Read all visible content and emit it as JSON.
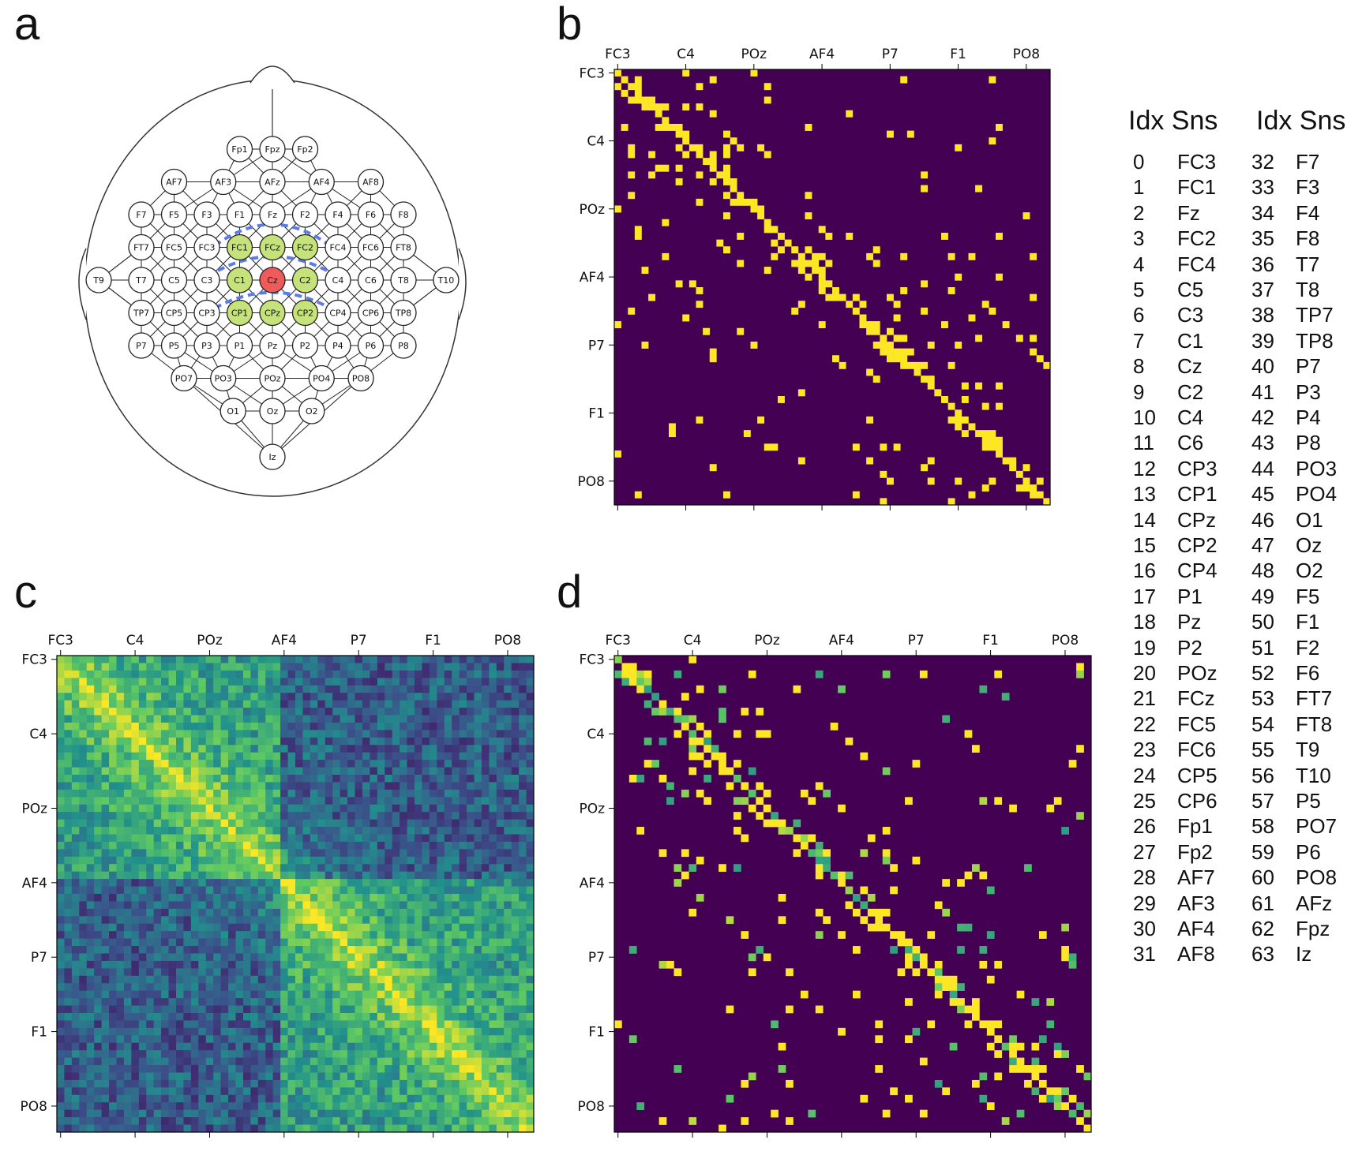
{
  "panels": [
    "a",
    "b",
    "c",
    "d"
  ],
  "head_electrodes": [
    {
      "label": "Fp1",
      "c": -1,
      "r": -4,
      "color": "white"
    },
    {
      "label": "Fpz",
      "c": 0,
      "r": -4,
      "color": "white"
    },
    {
      "label": "Fp2",
      "c": 1,
      "r": -4,
      "color": "white"
    },
    {
      "label": "AF7",
      "c": -3,
      "r": -3,
      "color": "white"
    },
    {
      "label": "AF3",
      "c": -1.5,
      "r": -3,
      "color": "white"
    },
    {
      "label": "AFz",
      "c": 0,
      "r": -3,
      "color": "white"
    },
    {
      "label": "AF4",
      "c": 1.5,
      "r": -3,
      "color": "white"
    },
    {
      "label": "AF8",
      "c": 3,
      "r": -3,
      "color": "white"
    },
    {
      "label": "F7",
      "c": -4,
      "r": -2,
      "color": "white"
    },
    {
      "label": "F5",
      "c": -3,
      "r": -2,
      "color": "white"
    },
    {
      "label": "F3",
      "c": -2,
      "r": -2,
      "color": "white"
    },
    {
      "label": "F1",
      "c": -1,
      "r": -2,
      "color": "white"
    },
    {
      "label": "Fz",
      "c": 0,
      "r": -2,
      "color": "white"
    },
    {
      "label": "F2",
      "c": 1,
      "r": -2,
      "color": "white"
    },
    {
      "label": "F4",
      "c": 2,
      "r": -2,
      "color": "white"
    },
    {
      "label": "F6",
      "c": 3,
      "r": -2,
      "color": "white"
    },
    {
      "label": "F8",
      "c": 4,
      "r": -2,
      "color": "white"
    },
    {
      "label": "FT7",
      "c": -4,
      "r": -1,
      "color": "white"
    },
    {
      "label": "FC5",
      "c": -3,
      "r": -1,
      "color": "white"
    },
    {
      "label": "FC3",
      "c": -2,
      "r": -1,
      "color": "white"
    },
    {
      "label": "FC1",
      "c": -1,
      "r": -1,
      "color": "green"
    },
    {
      "label": "FCz",
      "c": 0,
      "r": -1,
      "color": "green"
    },
    {
      "label": "FC2",
      "c": 1,
      "r": -1,
      "color": "green"
    },
    {
      "label": "FC4",
      "c": 2,
      "r": -1,
      "color": "white"
    },
    {
      "label": "FC6",
      "c": 3,
      "r": -1,
      "color": "white"
    },
    {
      "label": "FT8",
      "c": 4,
      "r": -1,
      "color": "white"
    },
    {
      "label": "T9",
      "c": -5.3,
      "r": 0,
      "color": "white"
    },
    {
      "label": "T7",
      "c": -4,
      "r": 0,
      "color": "white"
    },
    {
      "label": "C5",
      "c": -3,
      "r": 0,
      "color": "white"
    },
    {
      "label": "C3",
      "c": -2,
      "r": 0,
      "color": "white"
    },
    {
      "label": "C1",
      "c": -1,
      "r": 0,
      "color": "green"
    },
    {
      "label": "Cz",
      "c": 0,
      "r": 0,
      "color": "red"
    },
    {
      "label": "C2",
      "c": 1,
      "r": 0,
      "color": "green"
    },
    {
      "label": "C4",
      "c": 2,
      "r": 0,
      "color": "white"
    },
    {
      "label": "C6",
      "c": 3,
      "r": 0,
      "color": "white"
    },
    {
      "label": "T8",
      "c": 4,
      "r": 0,
      "color": "white"
    },
    {
      "label": "T10",
      "c": 5.3,
      "r": 0,
      "color": "white"
    },
    {
      "label": "TP7",
      "c": -4,
      "r": 1,
      "color": "white"
    },
    {
      "label": "CP5",
      "c": -3,
      "r": 1,
      "color": "white"
    },
    {
      "label": "CP3",
      "c": -2,
      "r": 1,
      "color": "white"
    },
    {
      "label": "CP1",
      "c": -1,
      "r": 1,
      "color": "green"
    },
    {
      "label": "CPz",
      "c": 0,
      "r": 1,
      "color": "green"
    },
    {
      "label": "CP2",
      "c": 1,
      "r": 1,
      "color": "green"
    },
    {
      "label": "CP4",
      "c": 2,
      "r": 1,
      "color": "white"
    },
    {
      "label": "CP6",
      "c": 3,
      "r": 1,
      "color": "white"
    },
    {
      "label": "TP8",
      "c": 4,
      "r": 1,
      "color": "white"
    },
    {
      "label": "P7",
      "c": -4,
      "r": 2,
      "color": "white"
    },
    {
      "label": "P5",
      "c": -3,
      "r": 2,
      "color": "white"
    },
    {
      "label": "P3",
      "c": -2,
      "r": 2,
      "color": "white"
    },
    {
      "label": "P1",
      "c": -1,
      "r": 2,
      "color": "white"
    },
    {
      "label": "Pz",
      "c": 0,
      "r": 2,
      "color": "white"
    },
    {
      "label": "P2",
      "c": 1,
      "r": 2,
      "color": "white"
    },
    {
      "label": "P4",
      "c": 2,
      "r": 2,
      "color": "white"
    },
    {
      "label": "P6",
      "c": 3,
      "r": 2,
      "color": "white"
    },
    {
      "label": "P8",
      "c": 4,
      "r": 2,
      "color": "white"
    },
    {
      "label": "PO7",
      "c": -2.7,
      "r": 3,
      "color": "white"
    },
    {
      "label": "PO3",
      "c": -1.5,
      "r": 3,
      "color": "white"
    },
    {
      "label": "POz",
      "c": 0,
      "r": 3,
      "color": "white"
    },
    {
      "label": "PO4",
      "c": 1.5,
      "r": 3,
      "color": "white"
    },
    {
      "label": "PO8",
      "c": 2.7,
      "r": 3,
      "color": "white"
    },
    {
      "label": "O1",
      "c": -1.2,
      "r": 4,
      "color": "white"
    },
    {
      "label": "Oz",
      "c": 0,
      "r": 4,
      "color": "white"
    },
    {
      "label": "O2",
      "c": 1.2,
      "r": 4,
      "color": "white"
    },
    {
      "label": "Iz",
      "c": 0,
      "r": 5.4,
      "color": "white"
    }
  ],
  "matrix_tick_labels": [
    "FC3",
    "C4",
    "POz",
    "AF4",
    "P7",
    "F1",
    "PO8"
  ],
  "matrix_tick_indices": [
    0,
    10,
    20,
    30,
    40,
    50,
    60
  ],
  "matrix_size": 64,
  "colors": {
    "viridis_dark": "#440154",
    "viridis_yellow": "#fde725",
    "green_node": "#c6e27a",
    "red_node": "#ef5b5b",
    "dashed": "#5b7be6"
  },
  "legend": {
    "headers": [
      "Idx Sns",
      "Idx Sns"
    ],
    "rows": [
      [
        "0",
        "FC3"
      ],
      [
        "1",
        "FC1"
      ],
      [
        "2",
        "Fz"
      ],
      [
        "3",
        "FC2"
      ],
      [
        "4",
        "FC4"
      ],
      [
        "5",
        "C5"
      ],
      [
        "6",
        "C3"
      ],
      [
        "7",
        "C1"
      ],
      [
        "8",
        "Cz"
      ],
      [
        "9",
        "C2"
      ],
      [
        "10",
        "C4"
      ],
      [
        "11",
        "C6"
      ],
      [
        "12",
        "CP3"
      ],
      [
        "13",
        "CP1"
      ],
      [
        "14",
        "CPz"
      ],
      [
        "15",
        "CP2"
      ],
      [
        "16",
        "CP4"
      ],
      [
        "17",
        "P1"
      ],
      [
        "18",
        "Pz"
      ],
      [
        "19",
        "P2"
      ],
      [
        "20",
        "POz"
      ],
      [
        "21",
        "FCz"
      ],
      [
        "22",
        "FC5"
      ],
      [
        "23",
        "FC6"
      ],
      [
        "24",
        "CP5"
      ],
      [
        "25",
        "CP6"
      ],
      [
        "26",
        "Fp1"
      ],
      [
        "27",
        "Fp2"
      ],
      [
        "28",
        "AF7"
      ],
      [
        "29",
        "AF3"
      ],
      [
        "30",
        "AF4"
      ],
      [
        "31",
        "AF8"
      ],
      [
        "32",
        "F7"
      ],
      [
        "33",
        "F3"
      ],
      [
        "34",
        "F4"
      ],
      [
        "35",
        "F8"
      ],
      [
        "36",
        "T7"
      ],
      [
        "37",
        "T8"
      ],
      [
        "38",
        "TP7"
      ],
      [
        "39",
        "TP8"
      ],
      [
        "40",
        "P7"
      ],
      [
        "41",
        "P3"
      ],
      [
        "42",
        "P4"
      ],
      [
        "43",
        "P8"
      ],
      [
        "44",
        "PO3"
      ],
      [
        "45",
        "PO4"
      ],
      [
        "46",
        "O1"
      ],
      [
        "47",
        "Oz"
      ],
      [
        "48",
        "O2"
      ],
      [
        "49",
        "F5"
      ],
      [
        "50",
        "F1"
      ],
      [
        "51",
        "F2"
      ],
      [
        "52",
        "F6"
      ],
      [
        "53",
        "FT7"
      ],
      [
        "54",
        "FT8"
      ],
      [
        "55",
        "T9"
      ],
      [
        "56",
        "T10"
      ],
      [
        "57",
        "P5"
      ],
      [
        "58",
        "PO7"
      ],
      [
        "59",
        "P6"
      ],
      [
        "60",
        "PO8"
      ],
      [
        "61",
        "AFz"
      ],
      [
        "62",
        "Fpz"
      ],
      [
        "63",
        "Iz"
      ]
    ]
  }
}
